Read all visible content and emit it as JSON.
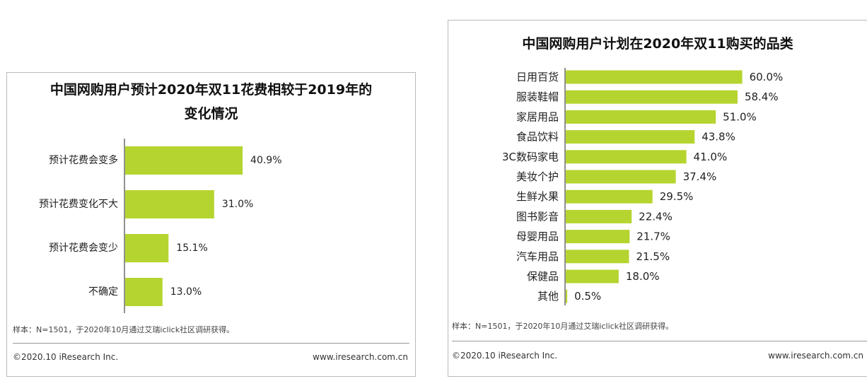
{
  "colors": {
    "bar": "#b5d42f",
    "axis": "#222222",
    "text": "#222222"
  },
  "charts": [
    {
      "title_line1": "中国网购用户预计2020年双11花费相较于2019年的",
      "title_line2": "变化情况",
      "sample_note": "样本：N=1501，于2020年10月通过艾瑞iclick社区调研获得。",
      "copyright": "©2020.10 iResearch Inc.",
      "website": "www.iresearch.com.cn"
    },
    {
      "title": "中国网购用户计划在2020年双11购买的品类",
      "sample_note": "样本：N=1501，于2020年10月通过艾瑞iclick社区调研获得。",
      "copyright": "©2020.10 iResearch Inc.",
      "website": "www.iresearch.com.cn"
    }
  ],
  "chart_data": [
    {
      "type": "bar",
      "orientation": "horizontal",
      "title": "中国网购用户预计2020年双11花费相较于2019年的变化情况",
      "categories": [
        "预计花费会变多",
        "预计花费变化不大",
        "预计花费会变少",
        "不确定"
      ],
      "values": [
        40.9,
        31.0,
        15.1,
        13.0
      ],
      "labels": [
        "40.9%",
        "31.0%",
        "15.1%",
        "13.0%"
      ],
      "unit": "%",
      "xlim": [
        0,
        100
      ],
      "grid": false,
      "legend": "none"
    },
    {
      "type": "bar",
      "orientation": "horizontal",
      "title": "中国网购用户计划在2020年双11购买的品类",
      "categories": [
        "日用百货",
        "服装鞋帽",
        "家居用品",
        "食品饮料",
        "3C数码家电",
        "美妆个护",
        "生鲜水果",
        "图书影音",
        "母婴用品",
        "汽车用品",
        "保健品",
        "其他"
      ],
      "values": [
        60.0,
        58.4,
        51.0,
        43.8,
        41.0,
        37.4,
        29.5,
        22.4,
        21.7,
        21.5,
        18.0,
        0.5
      ],
      "labels": [
        "60.0%",
        "58.4%",
        "51.0%",
        "43.8%",
        "41.0%",
        "37.4%",
        "29.5%",
        "22.4%",
        "21.7%",
        "21.5%",
        "18.0%",
        "0.5%"
      ],
      "unit": "%",
      "xlim": [
        0,
        100
      ],
      "grid": false,
      "legend": "none"
    }
  ]
}
